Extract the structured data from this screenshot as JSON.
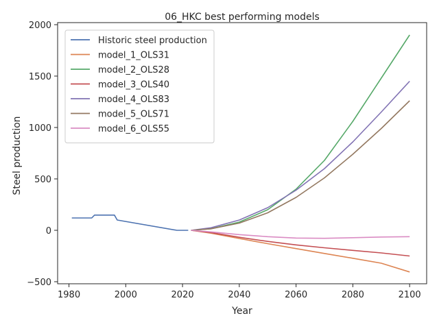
{
  "chart_data": {
    "type": "line",
    "title": "06_HKC best performing models",
    "xlabel": "Year",
    "ylabel": "Steel production",
    "xlim": [
      1976,
      2106
    ],
    "ylim": [
      -520,
      2020
    ],
    "xticks": [
      1980,
      2000,
      2020,
      2040,
      2060,
      2080,
      2100
    ],
    "yticks": [
      -500,
      0,
      500,
      1000,
      1500,
      2000
    ],
    "ytick_labels": [
      "−500",
      "0",
      "500",
      "1000",
      "1500",
      "2000"
    ],
    "grid": false,
    "legend_position": "top-left",
    "series": [
      {
        "name": "Historic steel production",
        "color": "#4c72b0",
        "points": [
          [
            1981,
            120
          ],
          [
            1988,
            120
          ],
          [
            1989,
            148
          ],
          [
            1996,
            148
          ],
          [
            1997,
            100
          ],
          [
            2018,
            0
          ],
          [
            2022,
            0
          ]
        ]
      },
      {
        "name": "model_1_OLS31",
        "color": "#dd8452",
        "points": [
          [
            2023,
            0
          ],
          [
            2030,
            -28
          ],
          [
            2040,
            -80
          ],
          [
            2050,
            -130
          ],
          [
            2060,
            -178
          ],
          [
            2070,
            -225
          ],
          [
            2080,
            -272
          ],
          [
            2090,
            -320
          ],
          [
            2100,
            -405
          ]
        ]
      },
      {
        "name": "model_2_OLS28",
        "color": "#55a868",
        "points": [
          [
            2023,
            0
          ],
          [
            2030,
            15
          ],
          [
            2040,
            80
          ],
          [
            2050,
            200
          ],
          [
            2060,
            400
          ],
          [
            2070,
            680
          ],
          [
            2080,
            1060
          ],
          [
            2090,
            1480
          ],
          [
            2100,
            1900
          ]
        ]
      },
      {
        "name": "model_3_OLS40",
        "color": "#c44e52",
        "points": [
          [
            2023,
            0
          ],
          [
            2030,
            -22
          ],
          [
            2040,
            -68
          ],
          [
            2050,
            -108
          ],
          [
            2060,
            -142
          ],
          [
            2070,
            -170
          ],
          [
            2080,
            -195
          ],
          [
            2090,
            -220
          ],
          [
            2100,
            -250
          ]
        ]
      },
      {
        "name": "model_4_OLS83",
        "color": "#8172b3",
        "points": [
          [
            2023,
            0
          ],
          [
            2030,
            25
          ],
          [
            2040,
            100
          ],
          [
            2050,
            220
          ],
          [
            2060,
            390
          ],
          [
            2070,
            600
          ],
          [
            2080,
            860
          ],
          [
            2090,
            1150
          ],
          [
            2100,
            1450
          ]
        ]
      },
      {
        "name": "model_5_OLS71",
        "color": "#937860",
        "points": [
          [
            2023,
            0
          ],
          [
            2030,
            15
          ],
          [
            2040,
            70
          ],
          [
            2050,
            170
          ],
          [
            2060,
            320
          ],
          [
            2070,
            510
          ],
          [
            2080,
            740
          ],
          [
            2090,
            990
          ],
          [
            2100,
            1260
          ]
        ]
      },
      {
        "name": "model_6_OLS55",
        "color": "#da8bc3",
        "points": [
          [
            2023,
            0
          ],
          [
            2030,
            -15
          ],
          [
            2040,
            -42
          ],
          [
            2050,
            -62
          ],
          [
            2060,
            -75
          ],
          [
            2070,
            -78
          ],
          [
            2080,
            -72
          ],
          [
            2090,
            -65
          ],
          [
            2100,
            -62
          ]
        ]
      }
    ]
  }
}
